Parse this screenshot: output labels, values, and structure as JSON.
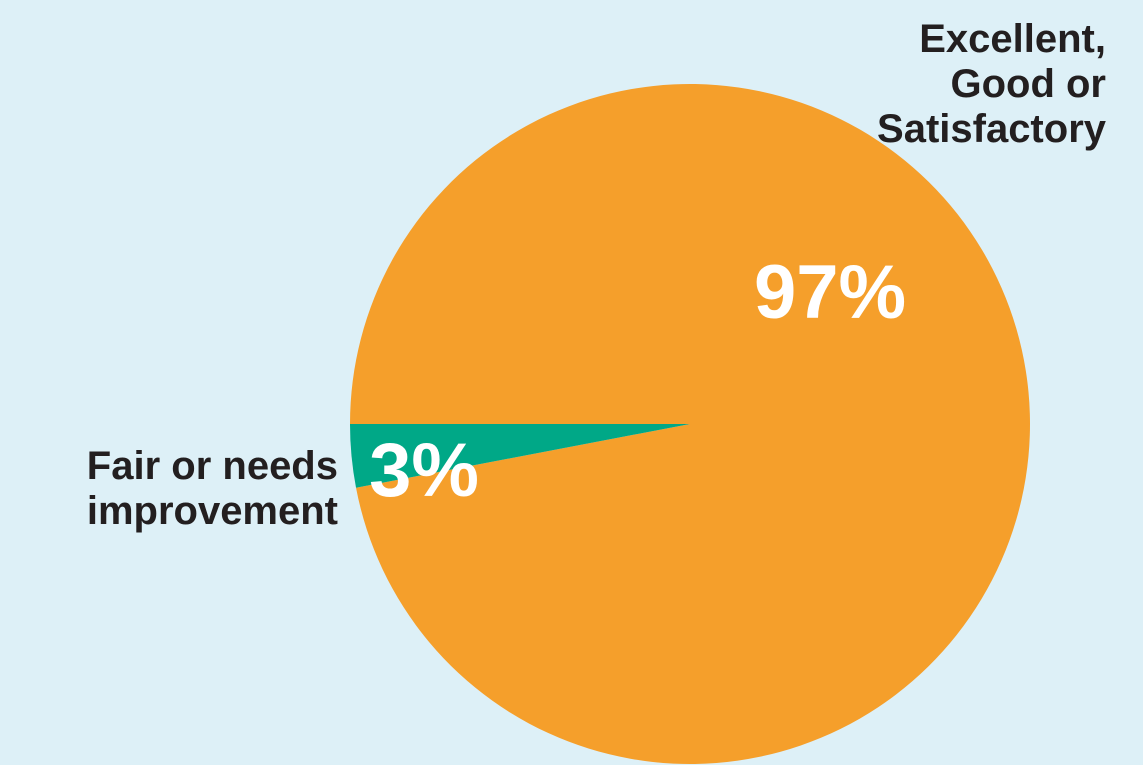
{
  "chart_data": {
    "type": "pie",
    "slices": [
      {
        "category_lines": [
          "Excellent,",
          "Good or",
          "Satisfactory"
        ],
        "value": 97,
        "value_label": "97%",
        "color": "#F59F2B"
      },
      {
        "category_lines": [
          "Fair or needs",
          "improvement"
        ],
        "value": 3,
        "value_label": "3%",
        "color": "#00A887"
      }
    ],
    "start_angle_deg": 180,
    "direction": "counterclockwise",
    "legend": "none"
  },
  "colors": {
    "background": "#DDF0F7",
    "label_text": "#231F20",
    "value_text": "#FFFFFF"
  }
}
